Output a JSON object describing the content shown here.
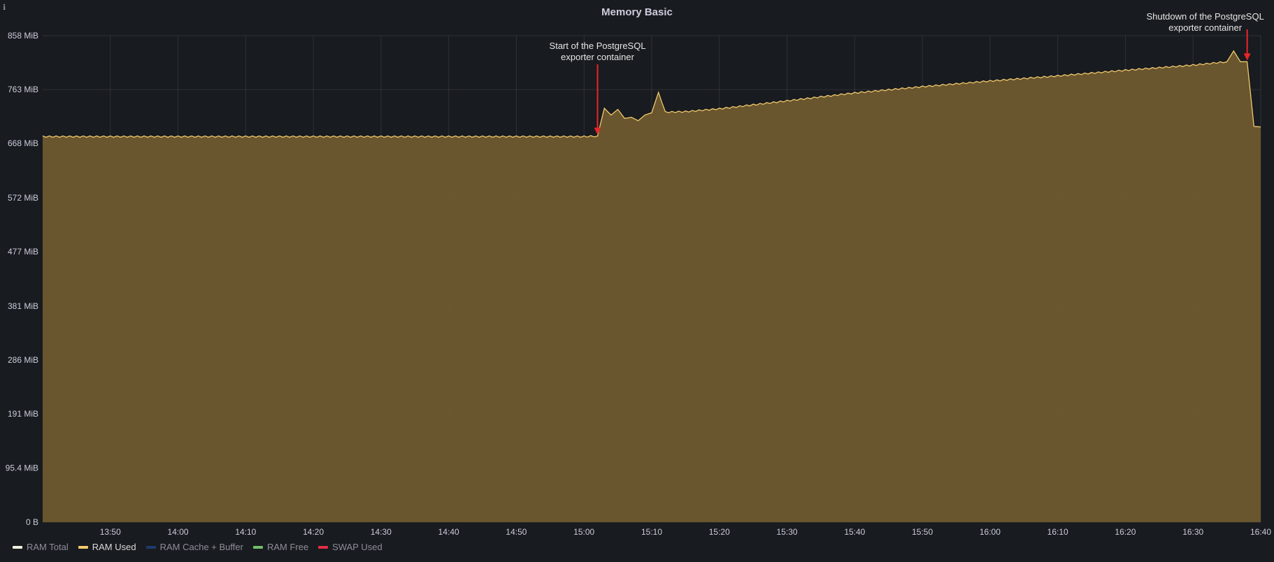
{
  "panel": {
    "title": "Memory Basic",
    "info_icon": "info-icon"
  },
  "legend": [
    {
      "label": "RAM Total",
      "color": "#f2f2e0",
      "active": false
    },
    {
      "label": "RAM Used",
      "color": "#f2c96d",
      "active": true
    },
    {
      "label": "RAM Cache + Buffer",
      "color": "#1f3b6e",
      "active": false
    },
    {
      "label": "RAM Free",
      "color": "#73bf69",
      "active": false
    },
    {
      "label": "SWAP Used",
      "color": "#e02f44",
      "active": false
    }
  ],
  "annotations": [
    {
      "text": "Start of the PostgreSQL\nexporter container",
      "at": "15:02"
    },
    {
      "text": "Shutdown of the PostgreSQL\nexporter container",
      "at": "16:38"
    }
  ],
  "chart_data": {
    "type": "area",
    "title": "Memory Basic",
    "xlabel": "",
    "ylabel": "",
    "y_unit": "MiB",
    "ylim": [
      0,
      858
    ],
    "y_ticks": [
      0,
      95.4,
      191,
      286,
      381,
      477,
      572,
      668,
      763,
      858
    ],
    "y_tick_labels": [
      "0 B",
      "95.4 MiB",
      "191 MiB",
      "286 MiB",
      "381 MiB",
      "477 MiB",
      "572 MiB",
      "668 MiB",
      "763 MiB",
      "858 MiB"
    ],
    "x_ticks": [
      "13:50",
      "14:00",
      "14:10",
      "14:20",
      "14:30",
      "14:40",
      "14:50",
      "15:00",
      "15:10",
      "15:20",
      "15:30",
      "15:40",
      "15:50",
      "16:00",
      "16:10",
      "16:20",
      "16:30",
      "16:40"
    ],
    "xlim": [
      "13:40",
      "16:40"
    ],
    "grid": true,
    "legend_position": "bottom-left",
    "series": [
      {
        "name": "RAM Used",
        "color": "#f2c96d",
        "fill": "#6e5a2f",
        "x": [
          "13:40",
          "13:50",
          "14:00",
          "14:10",
          "14:20",
          "14:30",
          "14:40",
          "14:50",
          "15:00",
          "15:02",
          "15:03",
          "15:04",
          "15:05",
          "15:06",
          "15:07",
          "15:08",
          "15:09",
          "15:10",
          "15:11",
          "15:12",
          "15:15",
          "15:20",
          "15:30",
          "15:40",
          "15:50",
          "16:00",
          "16:10",
          "16:20",
          "16:30",
          "16:35",
          "16:36",
          "16:37",
          "16:38",
          "16:39",
          "16:40"
        ],
        "values": [
          680,
          680,
          680,
          680,
          680,
          680,
          680,
          680,
          680,
          681,
          730,
          718,
          728,
          712,
          714,
          708,
          718,
          722,
          758,
          723,
          724,
          729,
          743,
          757,
          768,
          778,
          787,
          797,
          806,
          812,
          831,
          812,
          812,
          698,
          697
        ]
      }
    ]
  }
}
